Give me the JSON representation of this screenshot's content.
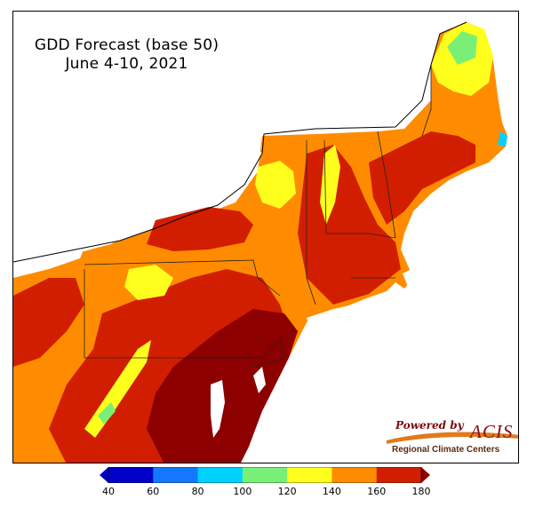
{
  "map": {
    "title_line1": "GDD Forecast (base 50)",
    "title_line2": "June 4-10, 2021",
    "background_color": "#ff8c00"
  },
  "legend": {
    "ticks": [
      "40",
      "60",
      "80",
      "100",
      "120",
      "140",
      "160",
      "180"
    ],
    "colors": [
      "#0000c8",
      "#1478ff",
      "#00d2ff",
      "#78f078",
      "#ffff1e",
      "#ff8c00",
      "#d21e00",
      "#8c0000"
    ]
  },
  "logo": {
    "powered_by": "Powered by",
    "brand": "ACIS",
    "subtitle": "Regional Climate Centers"
  }
}
